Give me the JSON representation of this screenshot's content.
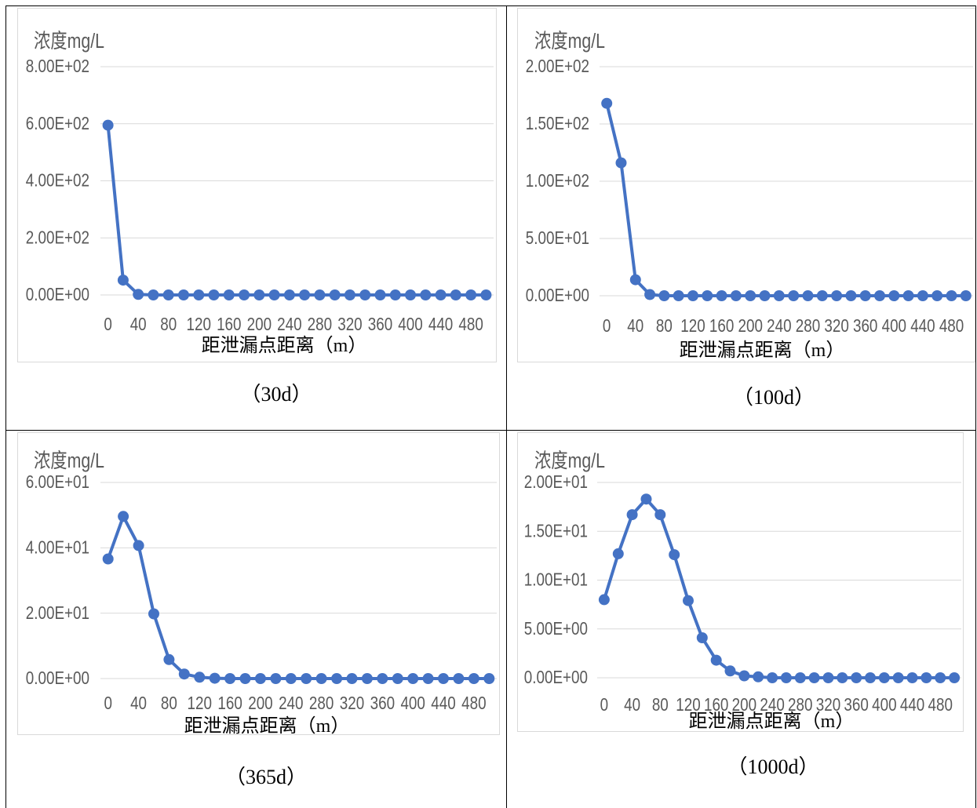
{
  "panels": [
    {
      "caption": "（30d）"
    },
    {
      "caption": "（100d）"
    },
    {
      "caption": "（365d）"
    },
    {
      "caption": "（1000d）"
    }
  ],
  "chart_data": [
    {
      "type": "line",
      "ylabel": "浓度mg/L",
      "xlabel": "距泄漏点距离（m）",
      "x": [
        0,
        20,
        40,
        60,
        80,
        100,
        120,
        140,
        160,
        180,
        200,
        220,
        240,
        260,
        280,
        300,
        320,
        340,
        360,
        380,
        400,
        420,
        440,
        460,
        480,
        500
      ],
      "x_tick_labels": [
        "0",
        "40",
        "80",
        "120",
        "160",
        "200",
        "240",
        "280",
        "320",
        "360",
        "400",
        "440",
        "480"
      ],
      "ylim": [
        0,
        800
      ],
      "y_ticks": [
        0,
        200,
        400,
        600,
        800
      ],
      "y_tick_labels": [
        "0.00E+00",
        "2.00E+02",
        "4.00E+02",
        "6.00E+02",
        "8.00E+02"
      ],
      "grid": true,
      "markers": true,
      "color": "#4472C4",
      "gridline_color": "#D9D9D9",
      "series": [
        {
          "values": [
            595,
            52,
            2,
            0,
            0,
            0,
            0,
            0,
            0,
            0,
            0,
            0,
            0,
            0,
            0,
            0,
            0,
            0,
            0,
            0,
            0,
            0,
            0,
            0,
            0,
            0
          ]
        }
      ]
    },
    {
      "type": "line",
      "ylabel": "浓度mg/L",
      "xlabel": "距泄漏点距离（m）",
      "x": [
        0,
        20,
        40,
        60,
        80,
        100,
        120,
        140,
        160,
        180,
        200,
        220,
        240,
        260,
        280,
        300,
        320,
        340,
        360,
        380,
        400,
        420,
        440,
        460,
        480,
        500
      ],
      "x_tick_labels": [
        "0",
        "40",
        "80",
        "120",
        "160",
        "200",
        "240",
        "280",
        "320",
        "360",
        "400",
        "440",
        "480"
      ],
      "ylim": [
        0,
        200
      ],
      "y_ticks": [
        0,
        50,
        100,
        150,
        200
      ],
      "y_tick_labels": [
        "0.00E+00",
        "5.00E+01",
        "1.00E+02",
        "1.50E+02",
        "2.00E+02"
      ],
      "grid": true,
      "markers": true,
      "color": "#4472C4",
      "gridline_color": "#D9D9D9",
      "series": [
        {
          "values": [
            168,
            116,
            14,
            1,
            0,
            0,
            0,
            0,
            0,
            0,
            0,
            0,
            0,
            0,
            0,
            0,
            0,
            0,
            0,
            0,
            0,
            0,
            0,
            0,
            0,
            0
          ]
        }
      ]
    },
    {
      "type": "line",
      "ylabel": "浓度mg/L",
      "xlabel": "距泄漏点距离（m）",
      "x": [
        0,
        20,
        40,
        60,
        80,
        100,
        120,
        140,
        160,
        180,
        200,
        220,
        240,
        260,
        280,
        300,
        320,
        340,
        360,
        380,
        400,
        420,
        440,
        460,
        480,
        500
      ],
      "x_tick_labels": [
        "0",
        "40",
        "80",
        "120",
        "160",
        "200",
        "240",
        "280",
        "320",
        "360",
        "400",
        "440",
        "480"
      ],
      "ylim": [
        0,
        60
      ],
      "y_ticks": [
        0,
        20,
        40,
        60
      ],
      "y_tick_labels": [
        "0.00E+00",
        "2.00E+01",
        "4.00E+01",
        "6.00E+01"
      ],
      "grid": true,
      "markers": true,
      "color": "#4472C4",
      "gridline_color": "#D9D9D9",
      "series": [
        {
          "values": [
            36.6,
            49.6,
            40.7,
            19.8,
            5.8,
            1.4,
            0.4,
            0.1,
            0,
            0,
            0,
            0,
            0,
            0,
            0,
            0,
            0,
            0,
            0,
            0,
            0,
            0,
            0,
            0,
            0,
            0
          ]
        }
      ]
    },
    {
      "type": "line",
      "ylabel": "浓度mg/L",
      "xlabel": "距泄漏点距离（m）",
      "x": [
        0,
        20,
        40,
        60,
        80,
        100,
        120,
        140,
        160,
        180,
        200,
        220,
        240,
        260,
        280,
        300,
        320,
        340,
        360,
        380,
        400,
        420,
        440,
        460,
        480,
        500
      ],
      "x_tick_labels": [
        "0",
        "40",
        "80",
        "120",
        "160",
        "200",
        "240",
        "280",
        "320",
        "360",
        "400",
        "440",
        "480"
      ],
      "ylim": [
        0,
        20
      ],
      "y_ticks": [
        0,
        5,
        10,
        15,
        20
      ],
      "y_tick_labels": [
        "0.00E+00",
        "5.00E+00",
        "1.00E+01",
        "1.50E+01",
        "2.00E+01"
      ],
      "grid": true,
      "markers": true,
      "color": "#4472C4",
      "gridline_color": "#D9D9D9",
      "series": [
        {
          "values": [
            8.0,
            12.7,
            16.7,
            18.3,
            16.7,
            12.6,
            7.9,
            4.1,
            1.8,
            0.7,
            0.2,
            0.1,
            0,
            0,
            0,
            0,
            0,
            0,
            0,
            0,
            0,
            0,
            0,
            0,
            0,
            0
          ]
        }
      ]
    }
  ]
}
